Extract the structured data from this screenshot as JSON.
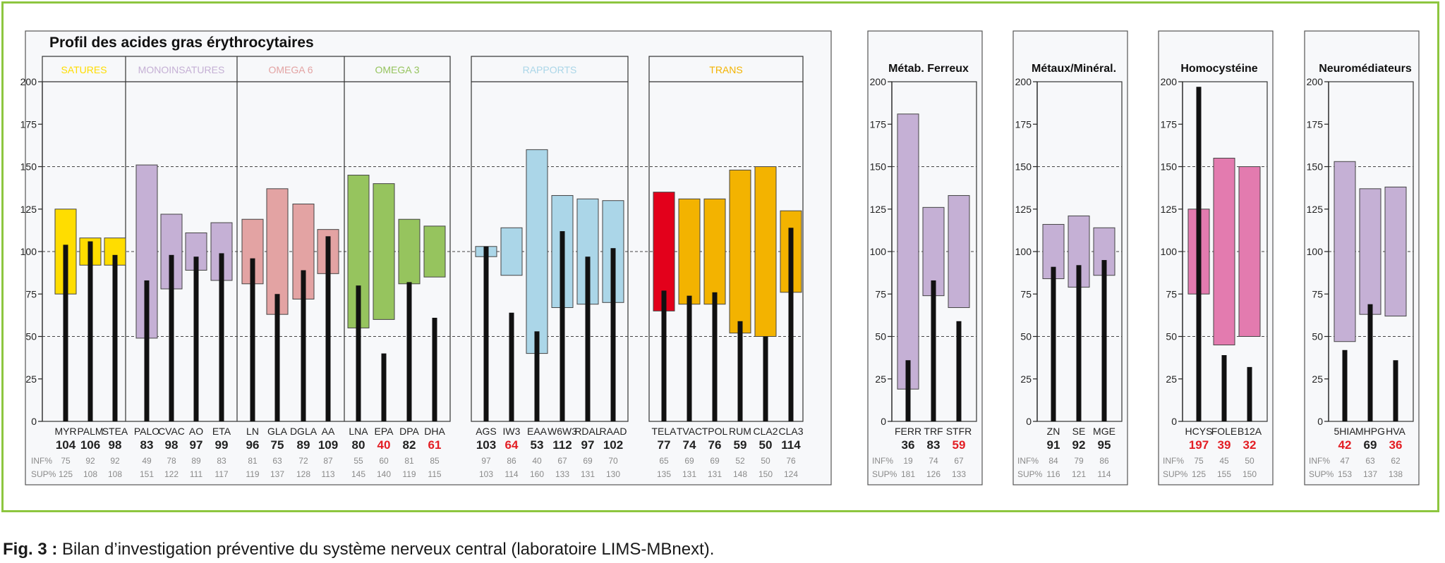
{
  "caption": {
    "fig_label": "Fig. 3 :",
    "text": " Bilan d’investigation préventive du système nerveux central (laboratoire LIMS-MBnext)."
  },
  "row_labels": {
    "inf": "INF%",
    "sup": "SUP%"
  },
  "colors": {
    "satures": "#ffdd00",
    "monoinsatures": "#c5b0d5",
    "omega6": "#e3a3a3",
    "omega3": "#96c45e",
    "rapports": "#abd6e8",
    "trans_red": "#e3001b",
    "trans": "#f3b300",
    "metab": "#c5b0d5",
    "homocysteine": "#e37baf",
    "value_bar": "#111111",
    "alert_text": "#e31e24",
    "frame_border": "#8dc63f"
  },
  "chart_data": [
    {
      "type": "bar",
      "title": "Profil des acides gras érythrocytaires",
      "ylim": [
        0,
        200
      ],
      "yticks": [
        0,
        25,
        50,
        75,
        100,
        125,
        150,
        175,
        200
      ],
      "grid_dashed": [
        50,
        100,
        150
      ],
      "groups": [
        {
          "name": "SATURES",
          "color_key": "satures",
          "items": [
            {
              "name": "MYR",
              "value": 104,
              "inf": 75,
              "sup": 125,
              "alert": false
            },
            {
              "name": "PALM",
              "value": 106,
              "inf": 92,
              "sup": 108,
              "alert": false
            },
            {
              "name": "STEA",
              "value": 98,
              "inf": 92,
              "sup": 108,
              "alert": false
            }
          ]
        },
        {
          "name": "MONOINSATURES",
          "color_key": "monoinsatures",
          "items": [
            {
              "name": "PALO",
              "value": 83,
              "inf": 49,
              "sup": 151,
              "alert": false
            },
            {
              "name": "CVAC",
              "value": 98,
              "inf": 78,
              "sup": 122,
              "alert": false
            },
            {
              "name": "AO",
              "value": 97,
              "inf": 89,
              "sup": 111,
              "alert": false
            },
            {
              "name": "ETA",
              "value": 99,
              "inf": 83,
              "sup": 117,
              "alert": false
            }
          ]
        },
        {
          "name": "OMEGA 6",
          "color_key": "omega6",
          "items": [
            {
              "name": "LN",
              "value": 96,
              "inf": 81,
              "sup": 119,
              "alert": false
            },
            {
              "name": "GLA",
              "value": 75,
              "inf": 63,
              "sup": 137,
              "alert": false
            },
            {
              "name": "DGLA",
              "value": 89,
              "inf": 72,
              "sup": 128,
              "alert": false
            },
            {
              "name": "AA",
              "value": 109,
              "inf": 87,
              "sup": 113,
              "alert": false
            }
          ]
        },
        {
          "name": "OMEGA 3",
          "color_key": "omega3",
          "items": [
            {
              "name": "LNA",
              "value": 80,
              "inf": 55,
              "sup": 145,
              "alert": false
            },
            {
              "name": "EPA",
              "value": 40,
              "inf": 60,
              "sup": 140,
              "alert": true
            },
            {
              "name": "DPA",
              "value": 82,
              "inf": 81,
              "sup": 119,
              "alert": false
            },
            {
              "name": "DHA",
              "value": 61,
              "inf": 85,
              "sup": 115,
              "alert": true
            }
          ]
        },
        {
          "name": "RAPPORTS",
          "color_key": "rapports",
          "items": [
            {
              "name": "AGS",
              "value": 103,
              "inf": 97,
              "sup": 103,
              "alert": false
            },
            {
              "name": "IW3",
              "value": 64,
              "inf": 86,
              "sup": 114,
              "alert": true
            },
            {
              "name": "EAA",
              "value": 53,
              "inf": 40,
              "sup": 160,
              "alert": false
            },
            {
              "name": "W6W3",
              "value": 112,
              "inf": 67,
              "sup": 133,
              "alert": false
            },
            {
              "name": "RDAL",
              "value": 97,
              "inf": 69,
              "sup": 131,
              "alert": false
            },
            {
              "name": "RAAD",
              "value": 102,
              "inf": 70,
              "sup": 130,
              "alert": false
            }
          ]
        },
        {
          "name": "TRANS",
          "color_key": "trans",
          "items": [
            {
              "name": "TELA",
              "value": 77,
              "inf": 65,
              "sup": 135,
              "alert": false,
              "color_key": "trans_red"
            },
            {
              "name": "TVAC",
              "value": 74,
              "inf": 69,
              "sup": 131,
              "alert": false
            },
            {
              "name": "TPOL",
              "value": 76,
              "inf": 69,
              "sup": 131,
              "alert": false
            },
            {
              "name": "RUM",
              "value": 59,
              "inf": 52,
              "sup": 148,
              "alert": false
            },
            {
              "name": "CLA2",
              "value": 50,
              "inf": 50,
              "sup": 150,
              "alert": false
            },
            {
              "name": "CLA3",
              "value": 114,
              "inf": 76,
              "sup": 124,
              "alert": false
            }
          ]
        }
      ]
    },
    {
      "type": "bar",
      "title": "Métab. Ferreux",
      "ylim": [
        0,
        200
      ],
      "items": [
        {
          "name": "FERR",
          "value": 36,
          "inf": 19,
          "sup": 181,
          "alert": false,
          "color_key": "metab"
        },
        {
          "name": "TRF",
          "value": 83,
          "inf": 74,
          "sup": 126,
          "alert": false,
          "color_key": "metab"
        },
        {
          "name": "STFR",
          "value": 59,
          "inf": 67,
          "sup": 133,
          "alert": true,
          "color_key": "metab"
        }
      ]
    },
    {
      "type": "bar",
      "title": "Métaux/Minéral.",
      "ylim": [
        0,
        200
      ],
      "items": [
        {
          "name": "ZN",
          "value": 91,
          "inf": 84,
          "sup": 116,
          "alert": false,
          "color_key": "metab"
        },
        {
          "name": "SE",
          "value": 92,
          "inf": 79,
          "sup": 121,
          "alert": false,
          "color_key": "metab"
        },
        {
          "name": "MGE",
          "value": 95,
          "inf": 86,
          "sup": 114,
          "alert": false,
          "color_key": "metab"
        }
      ]
    },
    {
      "type": "bar",
      "title": "Homocystéine",
      "ylim": [
        0,
        200
      ],
      "items": [
        {
          "name": "HCYS",
          "value": 197,
          "inf": 75,
          "sup": 125,
          "alert": true,
          "color_key": "homocysteine"
        },
        {
          "name": "FOLE",
          "value": 39,
          "inf": 45,
          "sup": 155,
          "alert": true,
          "color_key": "homocysteine"
        },
        {
          "name": "B12A",
          "value": 32,
          "inf": 50,
          "sup": 150,
          "alert": true,
          "color_key": "homocysteine"
        }
      ]
    },
    {
      "type": "bar",
      "title": "Neuromédiateurs",
      "ylim": [
        0,
        200
      ],
      "items": [
        {
          "name": "5HIA",
          "value": 42,
          "inf": 47,
          "sup": 153,
          "alert": true,
          "color_key": "metab"
        },
        {
          "name": "MHPG",
          "value": 69,
          "inf": 63,
          "sup": 137,
          "alert": false,
          "color_key": "metab"
        },
        {
          "name": "HVA",
          "value": 36,
          "inf": 62,
          "sup": 138,
          "alert": true,
          "color_key": "metab"
        }
      ]
    }
  ]
}
